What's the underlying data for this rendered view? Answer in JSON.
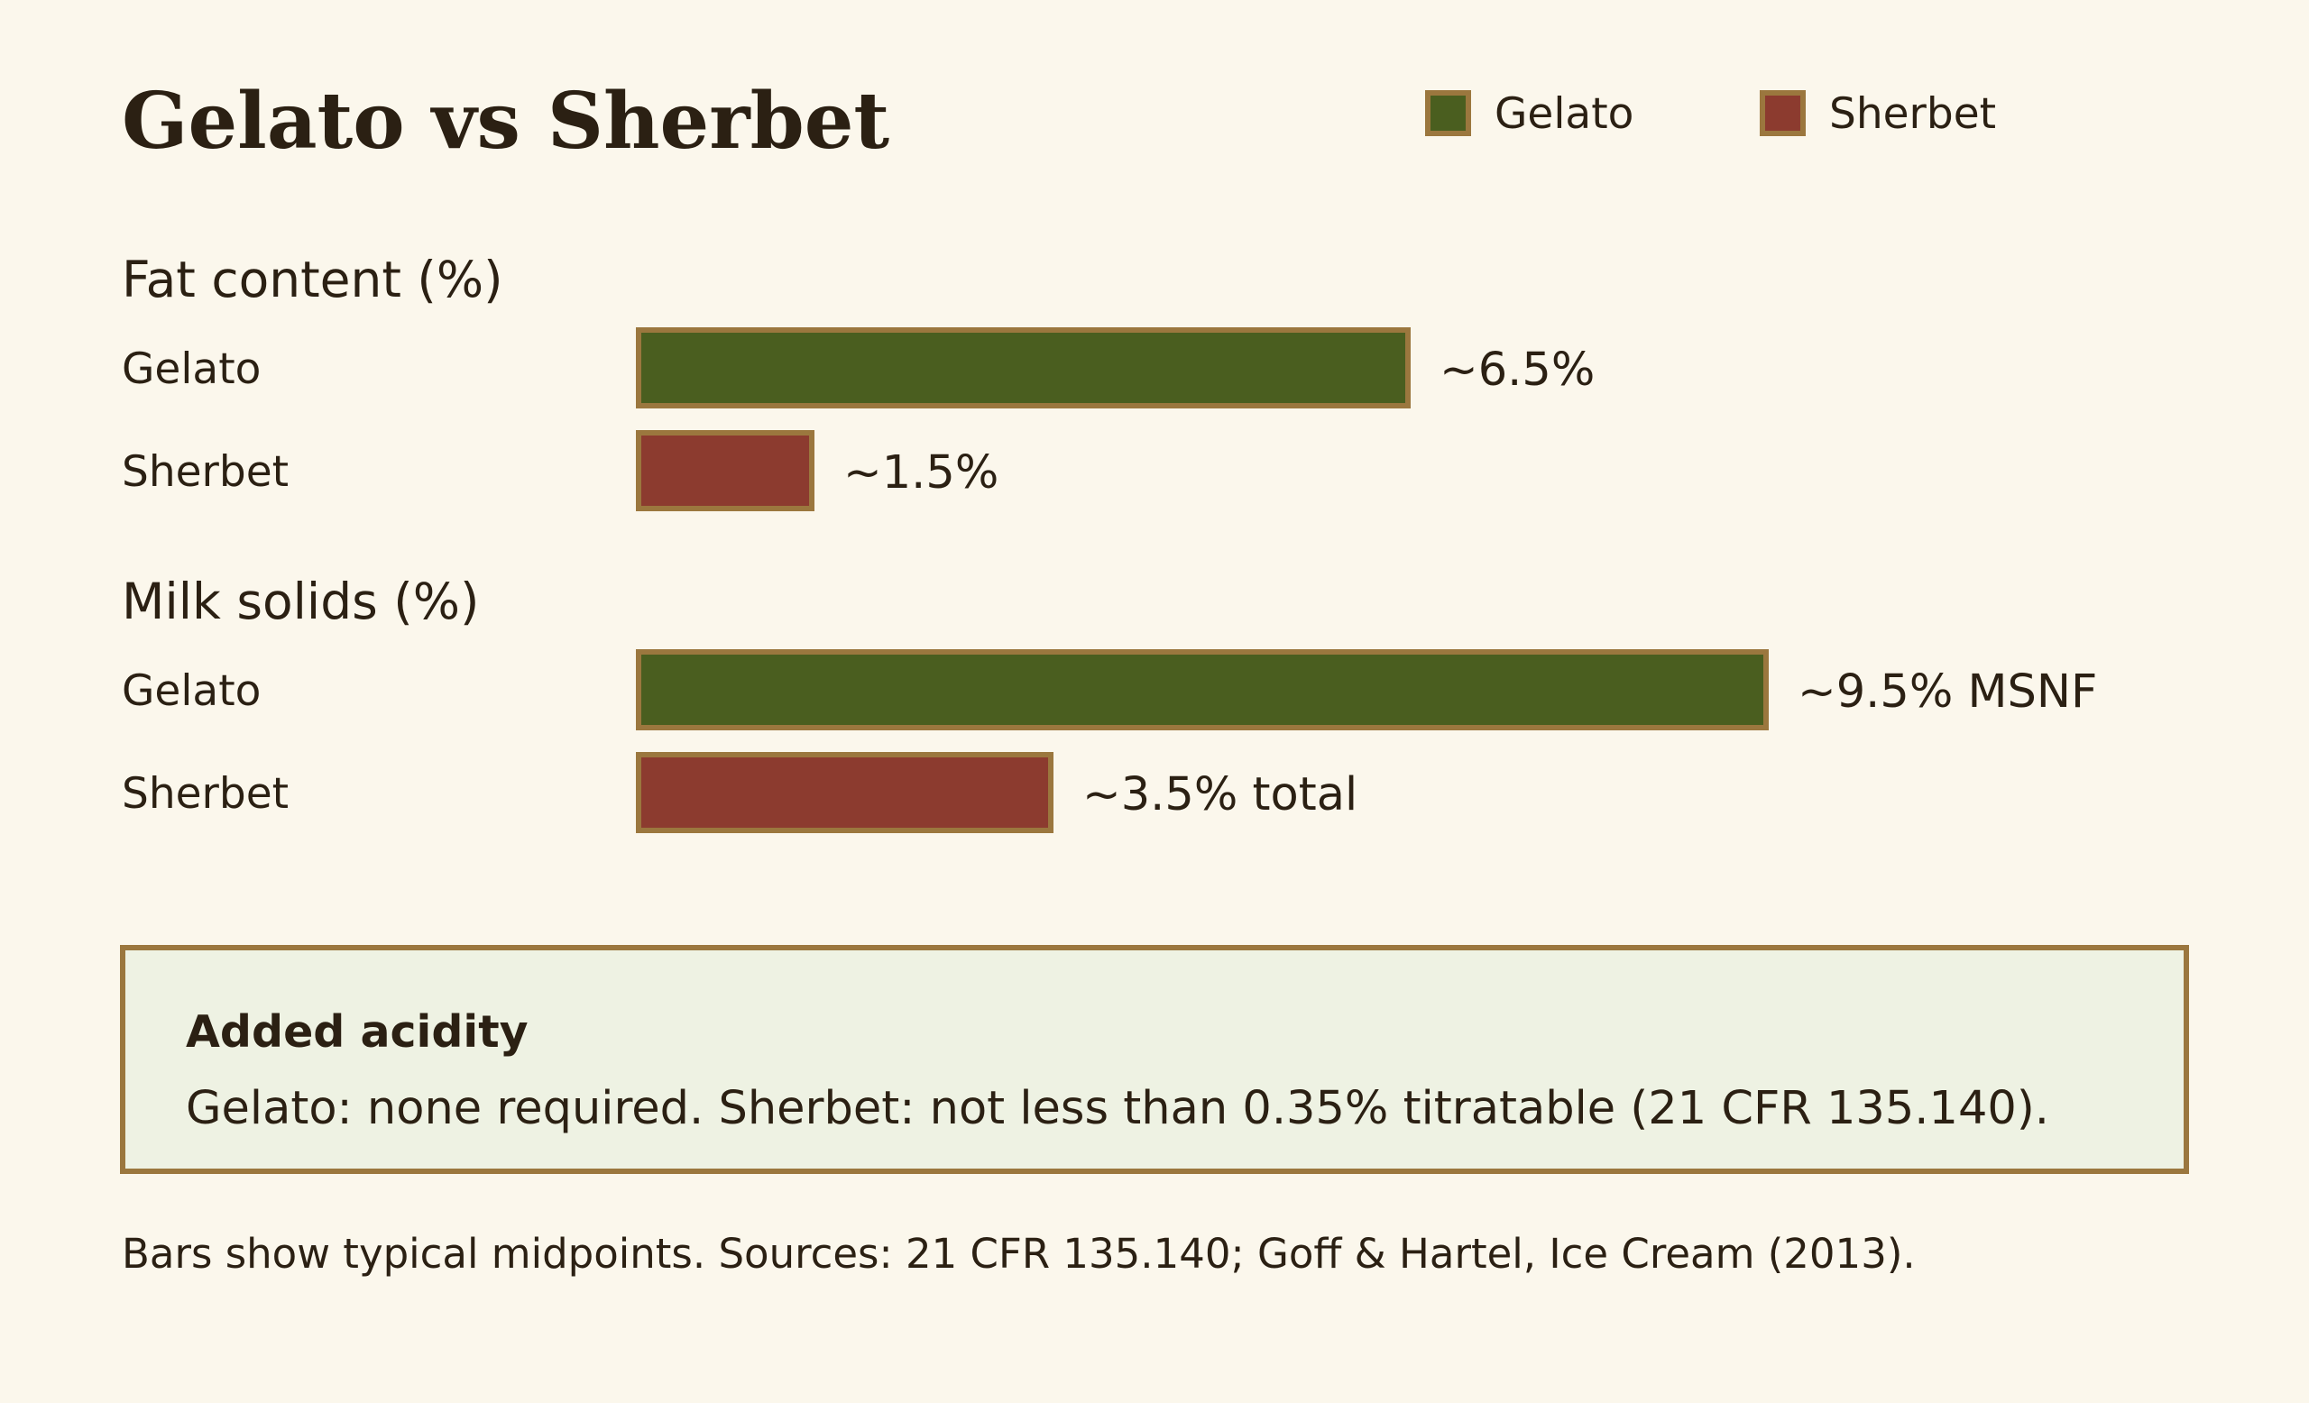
{
  "title": "Gelato vs Sherbet",
  "colors": {
    "background": "#fbf7ec",
    "gelato": "#4a5e1f",
    "sherbet": "#8c3b2f",
    "border": "#9b773e",
    "note_bg": "#eef2e3"
  },
  "legend": [
    {
      "label": "Gelato",
      "color": "#4a5e1f"
    },
    {
      "label": "Sherbet",
      "color": "#8c3b2f"
    }
  ],
  "chart_data": {
    "type": "bar",
    "orientation": "horizontal",
    "title": "Gelato vs Sherbet",
    "legend_position": "top-right",
    "grid": false,
    "groups": [
      {
        "title": "Fat content (%)",
        "rows": [
          {
            "series": "Gelato",
            "value": 6.5,
            "label": "~6.5%"
          },
          {
            "series": "Sherbet",
            "value": 1.5,
            "label": "~1.5%"
          }
        ]
      },
      {
        "title": "Milk solids (%)",
        "rows": [
          {
            "series": "Gelato",
            "value": 9.5,
            "label": "~9.5% MSNF"
          },
          {
            "series": "Sherbet",
            "value": 3.5,
            "label": "~3.5% total"
          }
        ]
      }
    ]
  },
  "note": {
    "heading": "Added acidity",
    "text": "Gelato: none required. Sherbet: not less than 0.35% titratable (21 CFR 135.140)."
  },
  "footnote": "Bars show typical midpoints. Sources: 21 CFR 135.140; Goff & Hartel, Ice Cream (2013)."
}
